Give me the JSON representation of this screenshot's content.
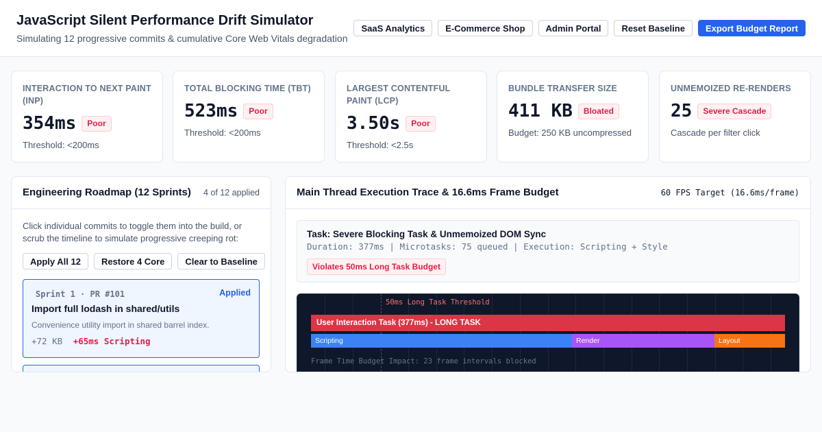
{
  "header": {
    "title": "JavaScript Silent Performance Drift Simulator",
    "subtitle": "Simulating 12 progressive commits & cumulative Core Web Vitals degradation",
    "buttons": {
      "saas": "SaaS Analytics",
      "ecommerce": "E-Commerce Shop",
      "admin": "Admin Portal",
      "reset": "Reset Baseline",
      "export": "Export Budget Report"
    }
  },
  "metrics": [
    {
      "label": "INTERACTION TO NEXT PAINT (INP)",
      "value": "354ms",
      "badge": "Poor",
      "note": "Threshold: <200ms"
    },
    {
      "label": "TOTAL BLOCKING TIME (TBT)",
      "value": "523ms",
      "badge": "Poor",
      "note": "Threshold: <200ms"
    },
    {
      "label": "LARGEST CONTENTFUL PAINT (LCP)",
      "value": "3.50s",
      "badge": "Poor",
      "note": "Threshold: <2.5s"
    },
    {
      "label": "BUNDLE TRANSFER SIZE",
      "value": "411 KB",
      "badge": "Bloated",
      "note": "Budget: 250 KB uncompressed"
    },
    {
      "label": "UNMEMOIZED RE-RENDERS",
      "value": "25",
      "badge": "Severe Cascade",
      "note": "Cascade per filter click"
    }
  ],
  "roadmap": {
    "title": "Engineering Roadmap (12 Sprints)",
    "applied_count": "4 of 12 applied",
    "help": "Click individual commits to toggle them into the build, or scrub the timeline to simulate progressive creeping rot:",
    "actions": {
      "apply_all": "Apply All 12",
      "restore_core": "Restore 4 Core",
      "clear": "Clear to Baseline"
    },
    "commits": [
      {
        "meta": "Sprint 1 · PR #101",
        "status": "Applied",
        "title": "Import full lodash in shared/utils",
        "description": "Convenience utility import in shared barrel index.",
        "size": "+72 KB",
        "cost": "+65ms Scripting"
      }
    ]
  },
  "trace": {
    "title": "Main Thread Execution Trace & 16.6ms Frame Budget",
    "target": "60 FPS Target (16.6ms/frame)",
    "task_title": "Task: Severe Blocking Task & Unmemoized DOM Sync",
    "task_detail": "Duration: 377ms | Microtasks: 75 queued | Execution: Scripting + Style",
    "task_badge": "Violates 50ms Long Task Budget",
    "threshold_label": "50ms Long Task Threshold",
    "long_task_label": "User Interaction Task (377ms) - LONG TASK",
    "phases": {
      "scripting": "Scripting",
      "render": "Render",
      "layout": "Layout"
    },
    "footer": "Frame Time Budget Impact: 23 frame intervals blocked"
  },
  "colors": {
    "accent": "#2563eb",
    "poor": "#e11d48",
    "long_task": "#dc3545",
    "scripting": "#3b82f6",
    "render": "#a855f7",
    "layout": "#f97316",
    "trace_bg": "#0f172a"
  }
}
